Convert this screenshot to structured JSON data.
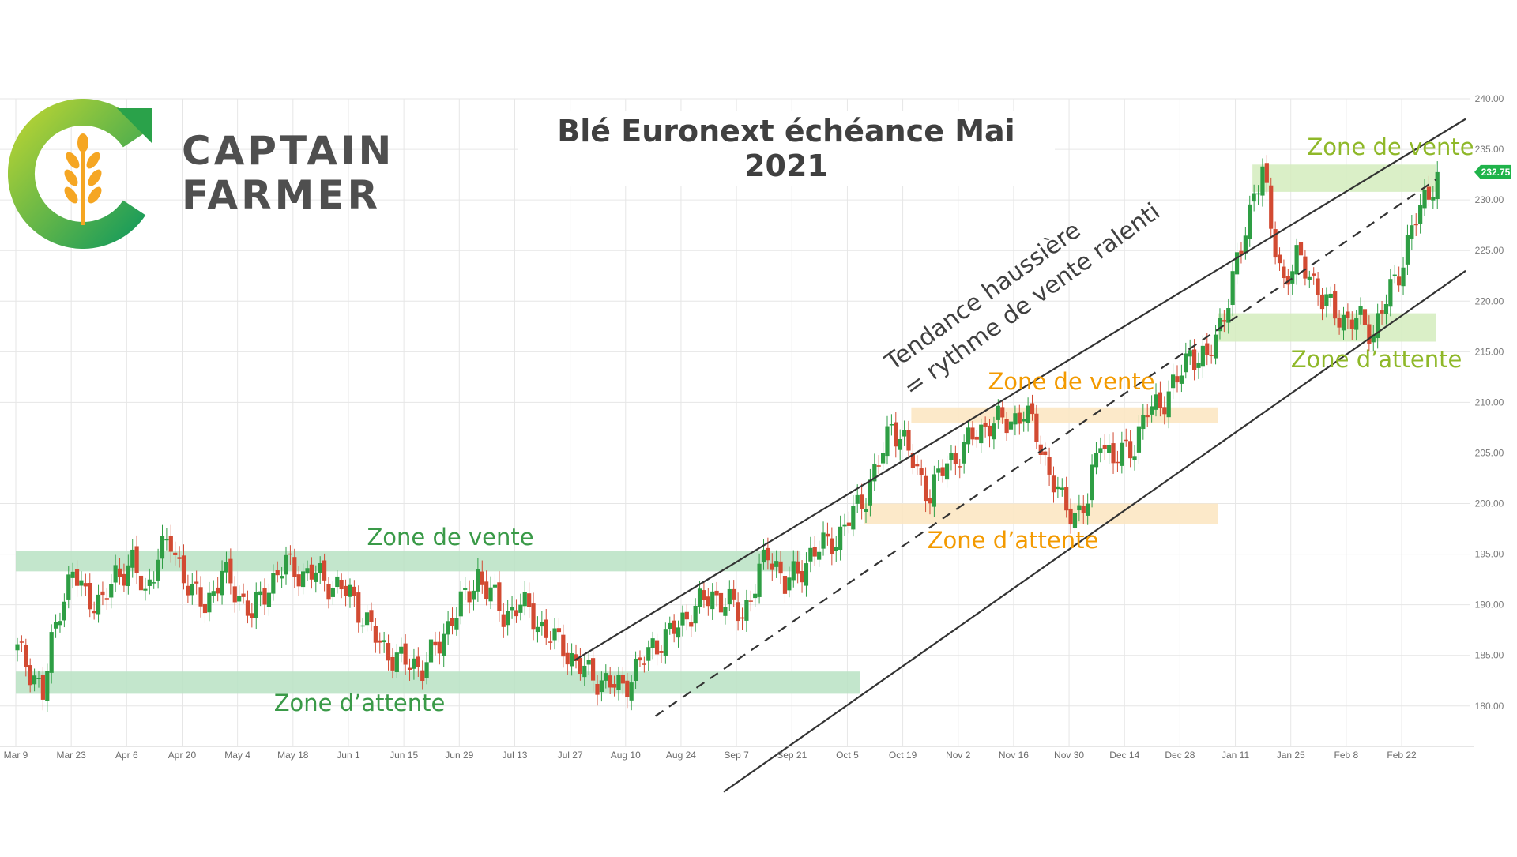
{
  "brand": {
    "line1": "CAPTAIN",
    "line2": "FARMER"
  },
  "chart_data": {
    "type": "candlestick",
    "title": "Blé Euronext échéance Mai 2021",
    "xlabel": "",
    "ylabel": "",
    "ylim": [
      176,
      240
    ],
    "ytick_step": 5,
    "y_ticks": [
      "180.00",
      "185.00",
      "190.00",
      "195.00",
      "200.00",
      "205.00",
      "210.00",
      "215.00",
      "220.00",
      "225.00",
      "230.00",
      "235.00",
      "240.00"
    ],
    "x_tick_labels": [
      "Mar 9",
      "Mar 23",
      "Apr 6",
      "Apr 20",
      "May 4",
      "May 18",
      "Jun 1",
      "Jun 15",
      "Jun 29",
      "Jul 13",
      "Jul 27",
      "Aug 10",
      "Aug 24",
      "Sep 7",
      "Sep 21",
      "Oct 5",
      "Oct 19",
      "Nov 2",
      "Nov 16",
      "Nov 30",
      "Dec 14",
      "Dec 28",
      "Jan 11",
      "Jan 25",
      "Feb 8",
      "Feb 22"
    ],
    "last_price": "232.75",
    "close_series": [
      [
        0,
        185.5
      ],
      [
        4,
        183
      ],
      [
        6,
        181
      ],
      [
        8,
        186
      ],
      [
        10,
        190
      ],
      [
        13,
        193
      ],
      [
        16,
        191
      ],
      [
        20,
        190
      ],
      [
        23,
        193
      ],
      [
        27,
        194
      ],
      [
        30,
        191
      ],
      [
        33,
        195
      ],
      [
        36,
        196
      ],
      [
        38,
        194
      ],
      [
        41,
        191
      ],
      [
        44,
        190
      ],
      [
        48,
        193
      ],
      [
        52,
        191
      ],
      [
        55,
        189
      ],
      [
        59,
        192
      ],
      [
        63,
        194
      ],
      [
        67,
        193
      ],
      [
        70,
        193
      ],
      [
        74,
        192
      ],
      [
        78,
        191
      ],
      [
        81,
        189
      ],
      [
        85,
        186
      ],
      [
        88,
        185
      ],
      [
        92,
        184
      ],
      [
        95,
        184
      ],
      [
        99,
        186
      ],
      [
        102,
        189
      ],
      [
        106,
        191
      ],
      [
        108,
        193
      ],
      [
        111,
        191
      ],
      [
        114,
        189
      ],
      [
        118,
        190
      ],
      [
        121,
        189
      ],
      [
        124,
        187
      ],
      [
        128,
        186
      ],
      [
        131,
        184
      ],
      [
        135,
        183
      ],
      [
        139,
        182
      ],
      [
        142,
        182
      ],
      [
        146,
        184
      ],
      [
        149,
        186
      ],
      [
        153,
        187
      ],
      [
        157,
        189
      ],
      [
        160,
        190
      ],
      [
        163,
        191
      ],
      [
        167,
        190
      ],
      [
        170,
        189
      ],
      [
        173,
        192
      ],
      [
        176,
        195
      ],
      [
        178,
        194
      ],
      [
        180,
        192
      ],
      [
        183,
        193
      ],
      [
        186,
        195
      ],
      [
        190,
        196
      ],
      [
        193,
        197
      ],
      [
        196,
        199
      ],
      [
        199,
        201
      ],
      [
        203,
        205
      ],
      [
        205,
        208
      ],
      [
        208,
        206
      ],
      [
        211,
        203
      ],
      [
        214,
        201
      ],
      [
        218,
        204
      ],
      [
        221,
        205
      ],
      [
        225,
        207
      ],
      [
        228,
        208
      ],
      [
        232,
        208
      ],
      [
        236,
        209
      ],
      [
        239,
        207
      ],
      [
        242,
        203
      ],
      [
        245,
        200
      ],
      [
        248,
        199
      ],
      [
        251,
        200
      ],
      [
        254,
        207
      ],
      [
        257,
        204
      ],
      [
        259,
        205
      ],
      [
        262,
        206
      ],
      [
        265,
        209
      ],
      [
        268,
        210
      ],
      [
        272,
        212
      ],
      [
        275,
        215
      ],
      [
        279,
        214
      ],
      [
        283,
        219
      ],
      [
        287,
        225
      ],
      [
        290,
        231
      ],
      [
        292,
        233
      ],
      [
        294,
        227
      ],
      [
        297,
        222
      ],
      [
        300,
        224
      ],
      [
        303,
        223
      ],
      [
        306,
        220
      ],
      [
        309,
        219
      ],
      [
        312,
        218
      ],
      [
        315,
        218
      ],
      [
        318,
        217
      ],
      [
        321,
        220
      ],
      [
        324,
        223
      ],
      [
        327,
        227
      ],
      [
        330,
        230
      ],
      [
        333,
        232.75
      ]
    ],
    "zones": [
      {
        "label": "Zone de vente",
        "color": "green",
        "y_low": 193.3,
        "y_high": 195.3,
        "x_from": 0,
        "x_to": 184
      },
      {
        "label": "Zone d’attente",
        "color": "green",
        "y_low": 181.2,
        "y_high": 183.4,
        "x_from": 0,
        "x_to": 198
      },
      {
        "label": "Zone de vente",
        "color": "orange",
        "y_low": 208.0,
        "y_high": 209.5,
        "x_from": 210,
        "x_to": 282
      },
      {
        "label": "Zone d’attente",
        "color": "orange",
        "y_low": 198.0,
        "y_high": 200.0,
        "x_from": 199,
        "x_to": 282
      },
      {
        "label": "Zone de vente",
        "color": "lightgreen",
        "y_low": 230.8,
        "y_high": 233.5,
        "x_from": 290,
        "x_to": 333
      },
      {
        "label": "Zone d’attente",
        "color": "lightgreen",
        "y_low": 216.0,
        "y_high": 218.8,
        "x_from": 282,
        "x_to": 333
      }
    ],
    "annotations": [
      {
        "text": "Tendance haussière",
        "color": "#404040"
      },
      {
        "text": "= rythme de vente ralenti",
        "color": "#404040"
      }
    ],
    "trend_channel": {
      "upper": {
        "from": [
          131,
          184.5
        ],
        "to": [
          340,
          238
        ]
      },
      "middle": {
        "from": [
          150,
          179
        ],
        "to": [
          333,
          232
        ]
      },
      "lower": {
        "from": [
          166,
          171.5
        ],
        "to": [
          340,
          223
        ]
      }
    },
    "colors": {
      "up": "#2e9e44",
      "down": "#d24a32",
      "zone_green": "#b9e2c3",
      "zone_orange": "#fce5c0",
      "zone_lightgreen": "#d4ecbd",
      "text_green": "#3a9a48",
      "text_orange": "#f39a00",
      "text_lightgreen": "#8fb829",
      "price_tag": "#1fb34a"
    }
  }
}
